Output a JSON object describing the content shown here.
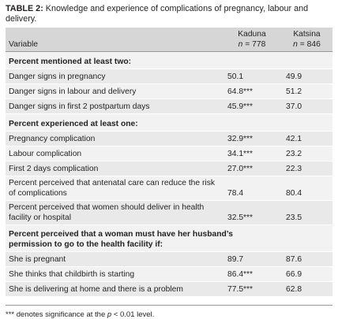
{
  "title": {
    "label": "TABLE 2:",
    "text": "Knowledge and experience of complications of pregnancy, labour and delivery."
  },
  "header": {
    "variable": "Variable",
    "columns": [
      {
        "name": "Kaduna",
        "n_symbol": "n",
        "n_value": "= 778"
      },
      {
        "name": "Katsina",
        "n_symbol": "n",
        "n_value": "= 846"
      }
    ]
  },
  "sections": [
    {
      "heading": "Percent mentioned at least two:",
      "rows": [
        [
          "Danger signs in pregnancy",
          "50.1",
          "49.9"
        ],
        [
          "Danger signs in labour and delivery",
          "64.8***",
          "51.2"
        ],
        [
          "Danger signs in first 2 postpartum days",
          "45.9***",
          "37.0"
        ]
      ]
    },
    {
      "heading": "Percent experienced at least one:",
      "rows": [
        [
          "Pregnancy complication",
          "32.9***",
          "42.1"
        ],
        [
          "Labour complication",
          "34.1***",
          "23.2"
        ],
        [
          "First 2 days complication",
          "27.0***",
          "22.3"
        ],
        [
          "Percent perceived that antenatal care can reduce the risk of complications",
          "78.4",
          "80.4"
        ],
        [
          "Percent perceived that women should deliver in health facility or hospital",
          "32.5***",
          "23.5"
        ]
      ]
    },
    {
      "heading": "Percent perceived that a woman must have her husband’s permission to go to the health facility if:",
      "rows": [
        [
          "She is pregnant",
          "89.7",
          "87.6"
        ],
        [
          "She thinks that childbirth is starting",
          "86.4***",
          "66.9"
        ],
        [
          "She is delivering at home and there is a problem",
          "77.5***",
          "62.8"
        ]
      ]
    }
  ],
  "footnote": {
    "before": "*** denotes significance at the",
    "symbol": "p",
    "after": "< 0.01 level."
  }
}
